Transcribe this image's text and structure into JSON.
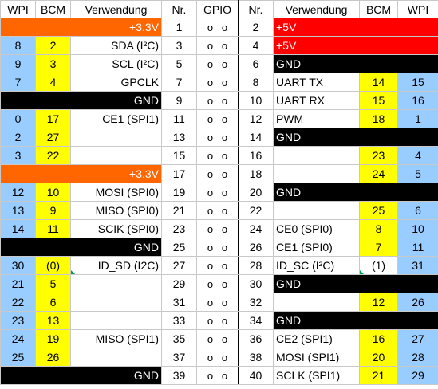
{
  "header": {
    "wpi_left": "WPI",
    "bcm_left": "BCM",
    "use_left": "Verwendung",
    "nr_left": "Nr.",
    "gpio": "GPIO",
    "nr_right": "Nr.",
    "use_right": "Verwendung",
    "bcm_right": "BCM",
    "wpi_right": "WPI"
  },
  "rows": [
    {
      "lw": "",
      "lb": "",
      "lu": "+3.3V",
      "lt": "orange",
      "ln": "1",
      "rn": "2",
      "ru": "+5V",
      "rt": "red",
      "rb": "",
      "rw": ""
    },
    {
      "lw": "8",
      "lb": "2",
      "lu": "SDA (I²C)",
      "lt": "white",
      "ln": "3",
      "rn": "4",
      "ru": "+5V",
      "rt": "red",
      "rb": "",
      "rw": ""
    },
    {
      "lw": "9",
      "lb": "3",
      "lu": "SCL (I²C)",
      "lt": "white",
      "ln": "5",
      "rn": "6",
      "ru": "GND",
      "rt": "black",
      "rb": "",
      "rw": ""
    },
    {
      "lw": "7",
      "lb": "4",
      "lu": "GPCLK",
      "lt": "white",
      "ln": "7",
      "rn": "8",
      "ru": "UART TX",
      "rt": "white",
      "rb": "14",
      "rw": "15"
    },
    {
      "lw": "",
      "lb": "",
      "lu": "GND",
      "lt": "black",
      "ln": "9",
      "rn": "10",
      "ru": "UART RX",
      "rt": "white",
      "rb": "15",
      "rw": "16"
    },
    {
      "lw": "0",
      "lb": "17",
      "lu": "CE1 (SPI1)",
      "lt": "white",
      "ln": "11",
      "rn": "12",
      "ru": "PWM",
      "rt": "white",
      "rb": "18",
      "rw": "1"
    },
    {
      "lw": "2",
      "lb": "27",
      "lu": "",
      "lt": "white",
      "ln": "13",
      "rn": "14",
      "ru": "GND",
      "rt": "black",
      "rb": "",
      "rw": ""
    },
    {
      "lw": "3",
      "lb": "22",
      "lu": "",
      "lt": "white",
      "ln": "15",
      "rn": "16",
      "ru": "",
      "rt": "white",
      "rb": "23",
      "rw": "4"
    },
    {
      "lw": "",
      "lb": "",
      "lu": "+3.3V",
      "lt": "orange",
      "ln": "17",
      "rn": "18",
      "ru": "",
      "rt": "white",
      "rb": "24",
      "rw": "5"
    },
    {
      "lw": "12",
      "lb": "10",
      "lu": "MOSI (SPI0)",
      "lt": "white",
      "ln": "19",
      "rn": "20",
      "ru": "GND",
      "rt": "black",
      "rb": "",
      "rw": ""
    },
    {
      "lw": "13",
      "lb": "9",
      "lu": "MISO (SPI0)",
      "lt": "white",
      "ln": "21",
      "rn": "22",
      "ru": "",
      "rt": "white",
      "rb": "25",
      "rw": "6"
    },
    {
      "lw": "14",
      "lb": "11",
      "lu": "SCIK (SPI0)",
      "lt": "white",
      "ln": "23",
      "rn": "24",
      "ru": "CE0 (SPI0)",
      "rt": "white",
      "rb": "8",
      "rw": "10"
    },
    {
      "lw": "",
      "lb": "",
      "lu": "GND",
      "lt": "black",
      "ln": "25",
      "rn": "26",
      "ru": "CE1 (SPI0)",
      "rt": "white",
      "rb": "7",
      "rw": "11"
    },
    {
      "lw": "30",
      "lb": "(0)",
      "lu": "ID_SD (I2C)",
      "lt": "white",
      "ln": "27",
      "rn": "28",
      "ru": "ID_SC (I²C)",
      "rt": "white",
      "rb": "(1)",
      "rw": "31"
    },
    {
      "lw": "21",
      "lb": "5",
      "lu": "",
      "lt": "white",
      "ln": "29",
      "rn": "30",
      "ru": "GND",
      "rt": "black",
      "rb": "",
      "rw": ""
    },
    {
      "lw": "22",
      "lb": "6",
      "lu": "",
      "lt": "white",
      "ln": "31",
      "rn": "32",
      "ru": "",
      "rt": "white",
      "rb": "12",
      "rw": "26"
    },
    {
      "lw": "23",
      "lb": "13",
      "lu": "",
      "lt": "white",
      "ln": "33",
      "rn": "34",
      "ru": "GND",
      "rt": "black",
      "rb": "",
      "rw": ""
    },
    {
      "lw": "24",
      "lb": "19",
      "lu": "MISO (SPI1)",
      "lt": "white",
      "ln": "35",
      "rn": "36",
      "ru": "CE2 (SPI1)",
      "rt": "white",
      "rb": "16",
      "rw": "27"
    },
    {
      "lw": "25",
      "lb": "26",
      "lu": "",
      "lt": "white",
      "ln": "37",
      "rn": "38",
      "ru": "MOSI (SPI1)",
      "rt": "white",
      "rb": "20",
      "rw": "28"
    },
    {
      "lw": "",
      "lb": "",
      "lu": "GND",
      "lt": "black",
      "ln": "39",
      "rn": "40",
      "ru": "SCLK (SPI1)",
      "rt": "white",
      "rb": "21",
      "rw": "29"
    }
  ],
  "pin_marker": "o",
  "colors": {
    "wpi": "#99ccff",
    "bcm": "#ffff00",
    "power_3v3": "#ff6600",
    "power_5v": "#ff0000",
    "ground": "#000000"
  }
}
